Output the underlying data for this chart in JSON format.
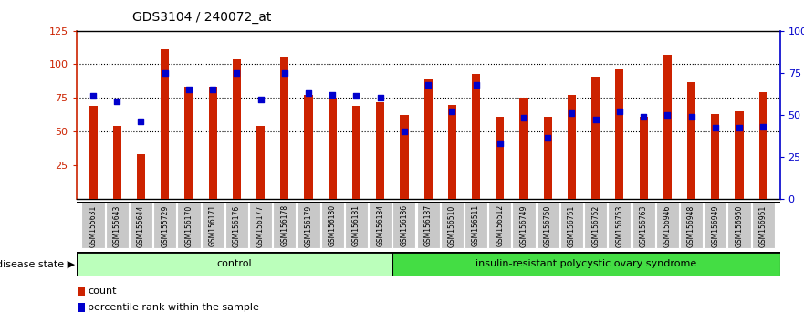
{
  "title": "GDS3104 / 240072_at",
  "samples": [
    "GSM155631",
    "GSM155643",
    "GSM155644",
    "GSM155729",
    "GSM156170",
    "GSM156171",
    "GSM156176",
    "GSM156177",
    "GSM156178",
    "GSM156179",
    "GSM156180",
    "GSM156181",
    "GSM156184",
    "GSM156186",
    "GSM156187",
    "GSM156510",
    "GSM156511",
    "GSM156512",
    "GSM156749",
    "GSM156750",
    "GSM156751",
    "GSM156752",
    "GSM156753",
    "GSM156763",
    "GSM156946",
    "GSM156948",
    "GSM156949",
    "GSM156950",
    "GSM156951"
  ],
  "counts": [
    69,
    54,
    33,
    111,
    83,
    83,
    104,
    54,
    105,
    77,
    75,
    69,
    72,
    62,
    89,
    70,
    93,
    61,
    75,
    61,
    77,
    91,
    96,
    61,
    107,
    87,
    63,
    65,
    79
  ],
  "percentile_ranks": [
    61,
    58,
    46,
    75,
    65,
    65,
    75,
    59,
    75,
    63,
    62,
    61,
    60,
    40,
    68,
    52,
    68,
    33,
    48,
    36,
    51,
    47,
    52,
    49,
    50,
    49,
    42,
    42,
    43
  ],
  "control_count": 13,
  "disease_count": 16,
  "control_label": "control",
  "disease_label": "insulin-resistant polycystic ovary syndrome",
  "ylim_left": [
    0,
    125
  ],
  "ylim_right": [
    0,
    100
  ],
  "yticks_left": [
    25,
    50,
    75,
    100,
    125
  ],
  "yticks_right": [
    0,
    25,
    50,
    75,
    100
  ],
  "bar_color": "#CC2200",
  "dot_color": "#0000CC",
  "bar_width": 0.35,
  "background_color": "#ffffff",
  "control_bg": "#BBFFBB",
  "disease_bg": "#44DD44",
  "left_axis_color": "#CC2200",
  "right_axis_color": "#0000CC",
  "title_fontsize": 10,
  "legend_fontsize": 8
}
